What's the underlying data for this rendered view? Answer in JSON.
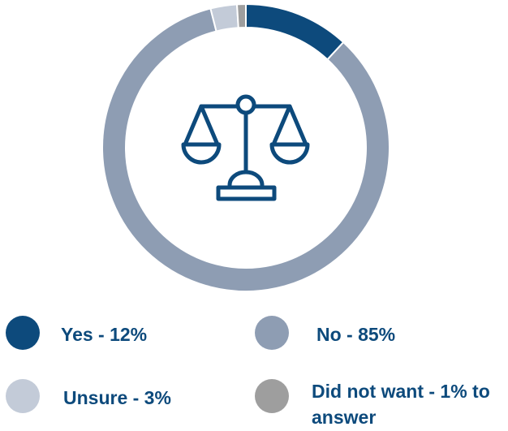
{
  "chart_data": {
    "type": "donut",
    "categories": [
      "Yes - 12%",
      "No - 85%",
      "Unsure - 3%",
      "Did not want - 1% to answer"
    ],
    "values": [
      12,
      85,
      3,
      1
    ],
    "colors": [
      "#0d4a7c",
      "#8e9db3",
      "#c3cbd8",
      "#9e9e9e"
    ]
  }
}
